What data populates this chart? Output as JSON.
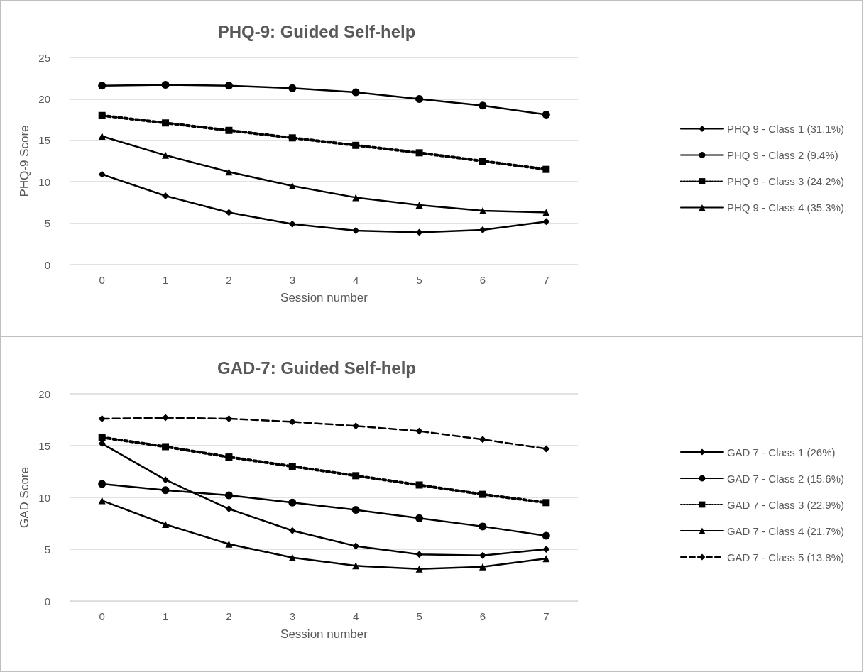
{
  "chart_data": [
    {
      "type": "line",
      "title": "PHQ-9: Guided Self-help",
      "xlabel": "Session number",
      "ylabel": "PHQ-9 Score",
      "categories": [
        "0",
        "1",
        "2",
        "3",
        "4",
        "5",
        "6",
        "7"
      ],
      "ylim": [
        0,
        25
      ],
      "yticks": [
        0,
        5,
        10,
        15,
        20,
        25
      ],
      "grid": "y",
      "legend": "right",
      "series": [
        {
          "name": "PHQ 9 - Class 1 (31.1%)",
          "color": "#000000",
          "marker": "diamond",
          "line_style": "solid",
          "values": [
            10.9,
            8.3,
            6.3,
            4.9,
            4.1,
            3.9,
            4.2,
            5.2
          ]
        },
        {
          "name": "PHQ 9 - Class 2 (9.4%)",
          "color": "#000000",
          "marker": "circle",
          "line_style": "solid",
          "values": [
            21.6,
            21.7,
            21.6,
            21.3,
            20.8,
            20.0,
            19.2,
            18.1
          ]
        },
        {
          "name": "PHQ 9 - Class 3 (24.2%)",
          "color": "#000000",
          "marker": "square",
          "line_style": "dotted",
          "values": [
            18.0,
            17.1,
            16.2,
            15.3,
            14.4,
            13.5,
            12.5,
            11.5
          ]
        },
        {
          "name": "PHQ 9 - Class 4 (35.3%)",
          "color": "#000000",
          "marker": "triangle",
          "line_style": "solid",
          "values": [
            15.5,
            13.2,
            11.2,
            9.5,
            8.1,
            7.2,
            6.5,
            6.3
          ]
        }
      ]
    },
    {
      "type": "line",
      "title": "GAD-7: Guided Self-help",
      "xlabel": "Session number",
      "ylabel": "GAD Score",
      "categories": [
        "0",
        "1",
        "2",
        "3",
        "4",
        "5",
        "6",
        "7"
      ],
      "ylim": [
        0,
        20
      ],
      "yticks": [
        0,
        5,
        10,
        15,
        20
      ],
      "grid": "y",
      "legend": "right",
      "series": [
        {
          "name": "GAD 7 - Class 1 (26%)",
          "color": "#000000",
          "marker": "diamond",
          "line_style": "solid",
          "values": [
            15.2,
            11.7,
            8.9,
            6.8,
            5.3,
            4.5,
            4.4,
            5.0
          ]
        },
        {
          "name": "GAD 7 - Class 2 (15.6%)",
          "color": "#000000",
          "marker": "circle",
          "line_style": "solid",
          "values": [
            11.3,
            10.7,
            10.2,
            9.5,
            8.8,
            8.0,
            7.2,
            6.3
          ]
        },
        {
          "name": "GAD 7 - Class 3 (22.9%)",
          "color": "#000000",
          "marker": "square",
          "line_style": "dotted",
          "values": [
            15.8,
            14.9,
            13.9,
            13.0,
            12.1,
            11.2,
            10.3,
            9.5
          ]
        },
        {
          "name": "GAD 7 - Class 4 (21.7%)",
          "color": "#000000",
          "marker": "triangle",
          "line_style": "solid",
          "values": [
            9.7,
            7.4,
            5.5,
            4.2,
            3.4,
            3.1,
            3.3,
            4.1
          ]
        },
        {
          "name": "GAD 7 - Class 5 (13.8%)",
          "color": "#000000",
          "marker": "diamond",
          "line_style": "dashed",
          "values": [
            17.6,
            17.7,
            17.6,
            17.3,
            16.9,
            16.4,
            15.6,
            14.7
          ]
        }
      ]
    }
  ]
}
